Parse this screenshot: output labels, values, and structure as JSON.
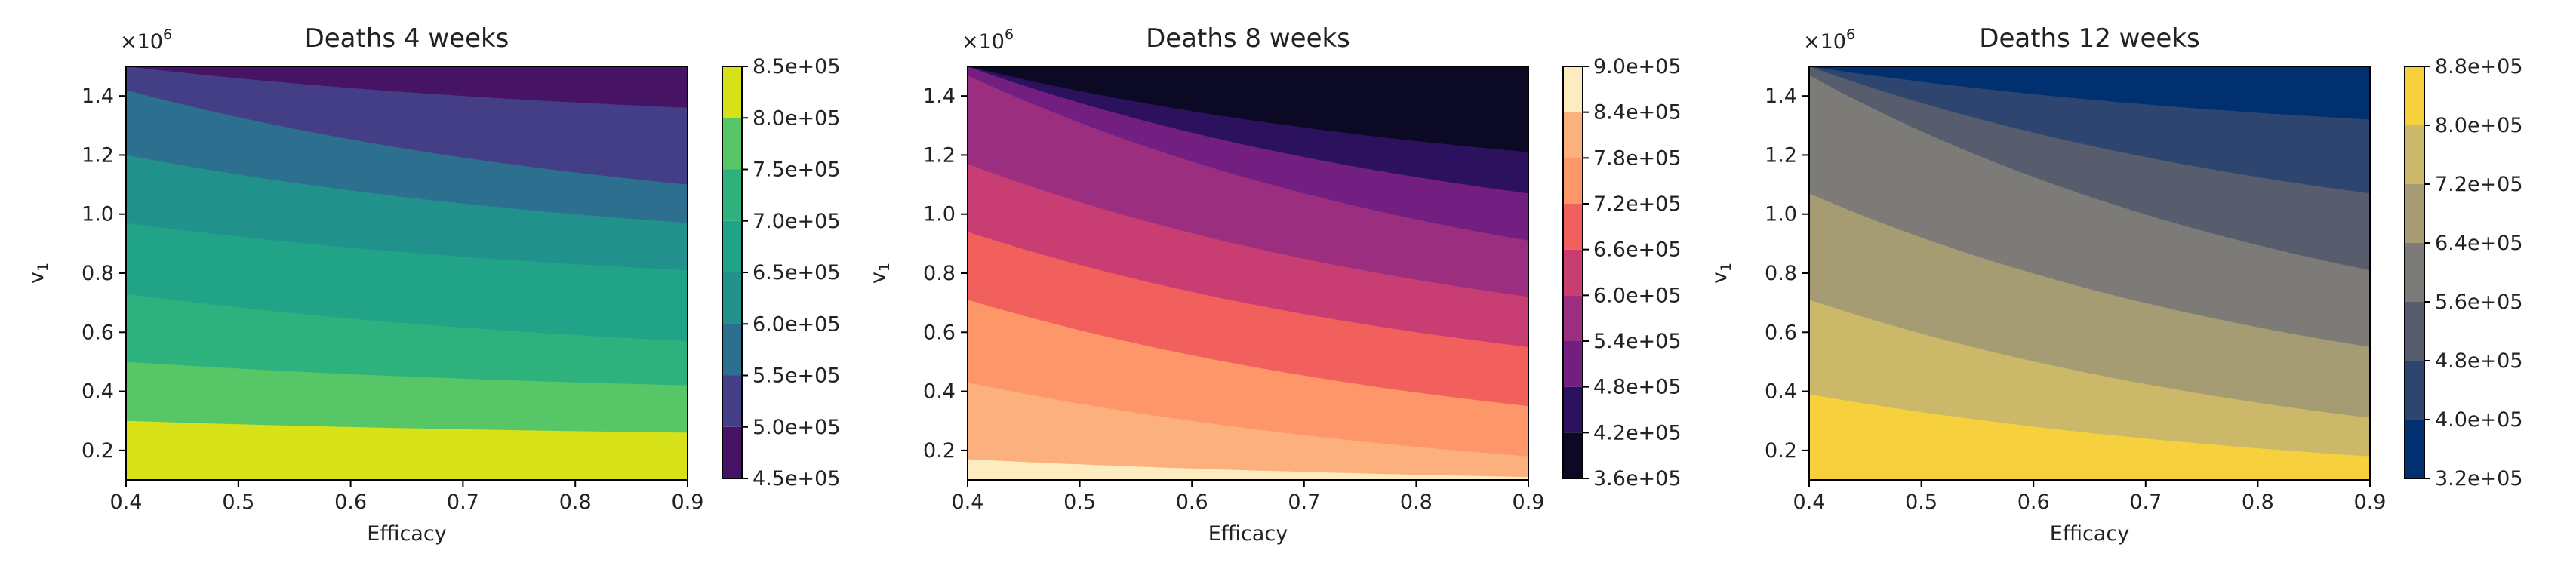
{
  "chart_data": [
    {
      "type": "heatmap",
      "subtype": "filled-contour",
      "title": "Deaths 4 weeks",
      "xlabel": "Efficacy",
      "ylabel": "v",
      "ylabel_subscript": "1",
      "y_multiplier_base": "×10",
      "y_multiplier_exp": "6",
      "xlim": [
        0.4,
        0.9
      ],
      "ylim": [
        0.1,
        1.5
      ],
      "xticks": [
        "0.4",
        "0.5",
        "0.6",
        "0.7",
        "0.8",
        "0.9"
      ],
      "yticks": [
        "0.2",
        "0.4",
        "0.6",
        "0.8",
        "1.0",
        "1.2",
        "1.4"
      ],
      "levels": [
        450000,
        500000,
        550000,
        600000,
        650000,
        700000,
        750000,
        800000,
        850000
      ],
      "level_labels": [
        "4.5e+05",
        "5.0e+05",
        "5.5e+05",
        "6.0e+05",
        "6.5e+05",
        "7.0e+05",
        "7.5e+05",
        "8.0e+05",
        "8.5e+05"
      ],
      "band_colors": [
        "#471365",
        "#433e85",
        "#2d6f8e",
        "#21918c",
        "#20a386",
        "#2db27d",
        "#56c667",
        "#d7e219"
      ],
      "boundaries": [
        {
          "level": 500000,
          "y_at_x_min": 1.5,
          "y_at_x_max": 1.36
        },
        {
          "level": 550000,
          "y_at_x_min": 1.42,
          "y_at_x_max": 1.1
        },
        {
          "level": 600000,
          "y_at_x_min": 1.2,
          "y_at_x_max": 0.97
        },
        {
          "level": 650000,
          "y_at_x_min": 0.97,
          "y_at_x_max": 0.81
        },
        {
          "level": 700000,
          "y_at_x_min": 0.73,
          "y_at_x_max": 0.57
        },
        {
          "level": 750000,
          "y_at_x_min": 0.5,
          "y_at_x_max": 0.42
        },
        {
          "level": 800000,
          "y_at_x_min": 0.3,
          "y_at_x_max": 0.26
        }
      ]
    },
    {
      "type": "heatmap",
      "subtype": "filled-contour",
      "title": "Deaths 8 weeks",
      "xlabel": "Efficacy",
      "ylabel": "v",
      "ylabel_subscript": "1",
      "y_multiplier_base": "×10",
      "y_multiplier_exp": "6",
      "xlim": [
        0.4,
        0.9
      ],
      "ylim": [
        0.1,
        1.5
      ],
      "xticks": [
        "0.4",
        "0.5",
        "0.6",
        "0.7",
        "0.8",
        "0.9"
      ],
      "yticks": [
        "0.2",
        "0.4",
        "0.6",
        "0.8",
        "1.0",
        "1.2",
        "1.4"
      ],
      "levels": [
        360000,
        420000,
        480000,
        540000,
        600000,
        660000,
        720000,
        780000,
        840000,
        900000
      ],
      "level_labels": [
        "3.6e+05",
        "4.2e+05",
        "4.8e+05",
        "5.4e+05",
        "6.0e+05",
        "6.6e+05",
        "7.2e+05",
        "7.8e+05",
        "8.4e+05",
        "9.0e+05"
      ],
      "band_colors": [
        "#0b0924",
        "#2c115f",
        "#721f81",
        "#9c2e7f",
        "#c83e73",
        "#f1605d",
        "#fd9668",
        "#fcb07d",
        "#fcecbf"
      ],
      "boundaries": [
        {
          "level": 420000,
          "y_at_x_min": 1.5,
          "y_at_x_max": 1.21
        },
        {
          "level": 480000,
          "y_at_x_min": 1.5,
          "y_at_x_max": 1.07
        },
        {
          "level": 540000,
          "y_at_x_min": 1.47,
          "y_at_x_max": 0.91
        },
        {
          "level": 600000,
          "y_at_x_min": 1.17,
          "y_at_x_max": 0.72
        },
        {
          "level": 660000,
          "y_at_x_min": 0.94,
          "y_at_x_max": 0.55
        },
        {
          "level": 720000,
          "y_at_x_min": 0.71,
          "y_at_x_max": 0.35
        },
        {
          "level": 780000,
          "y_at_x_min": 0.43,
          "y_at_x_max": 0.18
        },
        {
          "level": 840000,
          "y_at_x_min": 0.17,
          "y_at_x_max": 0.11
        }
      ]
    },
    {
      "type": "heatmap",
      "subtype": "filled-contour",
      "title": "Deaths 12 weeks",
      "xlabel": "Efficacy",
      "ylabel": "v",
      "ylabel_subscript": "1",
      "y_multiplier_base": "×10",
      "y_multiplier_exp": "6",
      "xlim": [
        0.4,
        0.9
      ],
      "ylim": [
        0.1,
        1.5
      ],
      "xticks": [
        "0.4",
        "0.5",
        "0.6",
        "0.7",
        "0.8",
        "0.9"
      ],
      "yticks": [
        "0.2",
        "0.4",
        "0.6",
        "0.8",
        "1.0",
        "1.2",
        "1.4"
      ],
      "levels": [
        320000,
        400000,
        480000,
        560000,
        640000,
        720000,
        800000,
        880000
      ],
      "level_labels": [
        "3.2e+05",
        "4.0e+05",
        "4.8e+05",
        "5.6e+05",
        "6.4e+05",
        "7.2e+05",
        "8.0e+05",
        "8.8e+05"
      ],
      "band_colors": [
        "#00306f",
        "#2e4570",
        "#575d6d",
        "#7c7b78",
        "#a59c74",
        "#cbb969",
        "#f7d13d"
      ],
      "boundaries": [
        {
          "level": 400000,
          "y_at_x_min": 1.5,
          "y_at_x_max": 1.32
        },
        {
          "level": 480000,
          "y_at_x_min": 1.5,
          "y_at_x_max": 1.07
        },
        {
          "level": 560000,
          "y_at_x_min": 1.47,
          "y_at_x_max": 0.81
        },
        {
          "level": 640000,
          "y_at_x_min": 1.07,
          "y_at_x_max": 0.55
        },
        {
          "level": 720000,
          "y_at_x_min": 0.71,
          "y_at_x_max": 0.31
        },
        {
          "level": 800000,
          "y_at_x_min": 0.39,
          "y_at_x_max": 0.18
        }
      ]
    }
  ]
}
